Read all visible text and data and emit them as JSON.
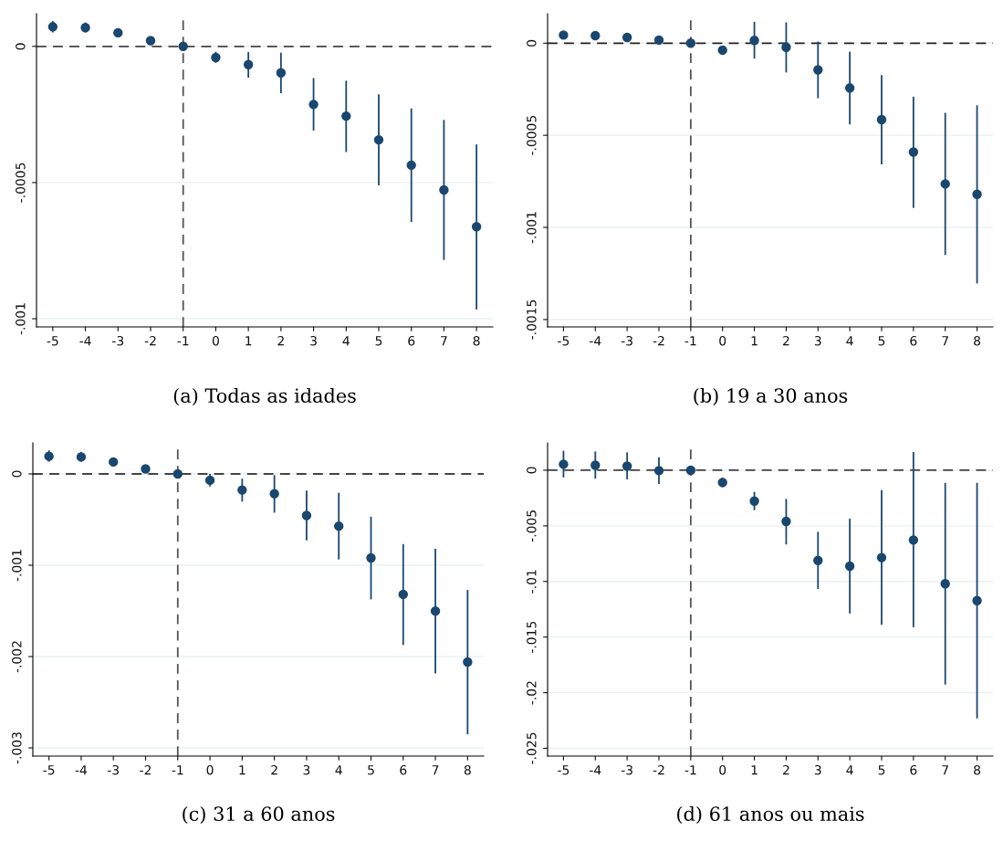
{
  "chart_data": [
    {
      "type": "scatter",
      "title": "(a) Todas as idades",
      "x": [
        -5,
        -4,
        -3,
        -2,
        -1,
        0,
        1,
        2,
        3,
        4,
        5,
        6,
        7,
        8
      ],
      "xlim": [
        -5.5,
        8.5
      ],
      "xticks": [
        -5,
        -4,
        -3,
        -2,
        -1,
        0,
        1,
        2,
        3,
        4,
        5,
        6,
        7,
        8
      ],
      "ylim": [
        -0.00103,
        0.00012
      ],
      "yticks": [
        0,
        {
          "value": -0.0005,
          "label": "-.0005"
        },
        {
          "value": -0.001,
          "label": "-.001"
        }
      ],
      "series": [
        {
          "color": "#1a476f",
          "values": [
            7.2e-05,
            6.9e-05,
            5e-05,
            2.1e-05,
            0,
            -4.1e-05,
            -6.7e-05,
            -9.7e-05,
            -0.000213,
            -0.000256,
            -0.000343,
            -0.000436,
            -0.000527,
            -0.000662
          ],
          "errors": [
            [
              5.1e-05,
              9.3e-05
            ],
            [
              5.1e-05,
              8.8e-05
            ],
            [
              3.5e-05,
              6.5e-05
            ],
            [
              9e-06,
              3.5e-05
            ],
            null,
            [
              -6e-05,
              -2e-05
            ],
            [
              -0.000115,
              -2.1e-05
            ],
            [
              -0.000172,
              -2.3e-05
            ],
            [
              -0.000309,
              -0.000116
            ],
            [
              -0.000388,
              -0.000126
            ],
            [
              -0.00051,
              -0.000176
            ],
            [
              -0.000645,
              -0.000228
            ],
            [
              -0.000784,
              -0.00027
            ],
            [
              -0.000966,
              -0.00036
            ]
          ]
        }
      ],
      "ref_lines": [
        {
          "axis": "y",
          "value": 0,
          "color": "#444444",
          "line_style": "dashed"
        },
        {
          "axis": "x",
          "value": -1,
          "color": "#555555",
          "line_style": "dashed"
        }
      ],
      "grid": "y",
      "marker": "circle"
    },
    {
      "type": "scatter",
      "title": "(b) 19 a 30 anos",
      "x": [
        -5,
        -4,
        -3,
        -2,
        -1,
        0,
        1,
        2,
        3,
        4,
        5,
        6,
        7,
        8
      ],
      "xlim": [
        -5.5,
        8.5
      ],
      "xticks": [
        -5,
        -4,
        -3,
        -2,
        -1,
        0,
        1,
        2,
        3,
        4,
        5,
        6,
        7,
        8
      ],
      "ylim": [
        -0.00154,
        0.00016
      ],
      "yticks": [
        0,
        {
          "value": -0.0005,
          "label": "-.0005"
        },
        {
          "value": -0.001,
          "label": "-.001"
        },
        {
          "value": -0.0015,
          "label": "-.0015"
        }
      ],
      "series": [
        {
          "color": "#1a476f",
          "values": [
            4.4e-05,
            4.1e-05,
            3.1e-05,
            1.7e-05,
            0,
            -3.8e-05,
            1.5e-05,
            -2.2e-05,
            -0.000145,
            -0.000243,
            -0.000415,
            -0.000591,
            -0.000764,
            -0.00082
          ],
          "errors": [
            null,
            null,
            null,
            null,
            null,
            null,
            [
              -8.4e-05,
              0.000116
            ],
            [
              -0.000159,
              0.000113
            ],
            [
              -0.000299,
              9e-06
            ],
            [
              -0.000441,
              -4.6e-05
            ],
            [
              -0.000658,
              -0.000173
            ],
            [
              -0.000894,
              -0.00029
            ],
            [
              -0.00115,
              -0.000378
            ],
            [
              -0.001304,
              -0.000337
            ]
          ]
        }
      ],
      "ref_lines": [
        {
          "axis": "y",
          "value": 0,
          "color": "#222222",
          "line_style": "dashed"
        },
        {
          "axis": "x",
          "value": -1,
          "color": "#555555",
          "line_style": "dashed"
        }
      ],
      "grid": "y",
      "marker": "circle"
    },
    {
      "type": "scatter",
      "title": "(c) 31 a 60 anos",
      "x": [
        -5,
        -4,
        -3,
        -2,
        -1,
        0,
        1,
        2,
        3,
        4,
        5,
        6,
        7,
        8
      ],
      "xlim": [
        -5.5,
        8.5
      ],
      "xticks": [
        -5,
        -4,
        -3,
        -2,
        -1,
        0,
        1,
        2,
        3,
        4,
        5,
        6,
        7,
        8
      ],
      "ylim": [
        -0.00309,
        0.00034
      ],
      "yticks": [
        0,
        {
          "value": -0.001,
          "label": "-.001"
        },
        {
          "value": -0.002,
          "label": "-.002"
        },
        {
          "value": -0.003,
          "label": "-.003"
        }
      ],
      "series": [
        {
          "color": "#1a476f",
          "values": [
            0.000193,
            0.000186,
            0.000131,
            5.5e-05,
            0,
            -6.9e-05,
            -0.000176,
            -0.000217,
            -0.000455,
            -0.000572,
            -0.00092,
            -0.001319,
            -0.001502,
            -0.00206
          ],
          "errors": [
            [
              0.000134,
              0.000258
            ],
            [
              0.000134,
              0.000241
            ],
            [
              9.3e-05,
              0.000169
            ],
            null,
            null,
            [
              -0.000138,
              0
            ],
            [
              -0.000303,
              -5.2e-05
            ],
            [
              -0.000424,
              -1.4e-05
            ],
            [
              -0.000727,
              -0.000183
            ],
            [
              -0.000937,
              -0.000207
            ],
            [
              -0.001374,
              -0.000468
            ],
            [
              -0.001874,
              -0.000768
            ],
            [
              -0.002184,
              -0.00082
            ],
            [
              -0.002852,
              -0.001271
            ]
          ]
        }
      ],
      "ref_lines": [
        {
          "axis": "y",
          "value": 0,
          "color": "#444444",
          "line_style": "dashed"
        },
        {
          "axis": "x",
          "value": -1,
          "color": "#555555",
          "line_style": "dashed"
        }
      ],
      "grid": "y",
      "marker": "circle"
    },
    {
      "type": "scatter",
      "title": "(d) 61 anos ou mais",
      "x": [
        -5,
        -4,
        -3,
        -2,
        -1,
        0,
        1,
        2,
        3,
        4,
        5,
        6,
        7,
        8
      ],
      "xlim": [
        -5.5,
        8.5
      ],
      "xticks": [
        -5,
        -4,
        -3,
        -2,
        -1,
        0,
        1,
        2,
        3,
        4,
        5,
        6,
        7,
        8
      ],
      "ylim": [
        -0.0257,
        0.00246
      ],
      "yticks": [
        0,
        {
          "value": -0.005,
          "label": "-.005"
        },
        {
          "value": -0.01,
          "label": "-.01"
        },
        {
          "value": -0.015,
          "label": "-.015"
        },
        {
          "value": -0.02,
          "label": "-.02"
        },
        {
          "value": -0.025,
          "label": "-.025"
        }
      ],
      "series": [
        {
          "color": "#1a476f",
          "values": [
            0.00054,
            0.00045,
            0.00037,
            -3e-05,
            0,
            -0.0011,
            -0.00277,
            -0.0046,
            -0.00811,
            -0.00862,
            -0.00785,
            -0.00627,
            -0.0102,
            -0.01172
          ],
          "errors": [
            [
              -0.00065,
              0.00175
            ],
            [
              -0.00076,
              0.00169
            ],
            [
              -0.00082,
              0.00161
            ],
            [
              -0.00124,
              0.00116
            ],
            null,
            [
              -0.00153,
              -0.00068
            ],
            [
              -0.00359,
              -0.00195
            ],
            [
              -0.00667,
              -0.00257
            ],
            [
              -0.01068,
              -0.00554
            ],
            [
              -0.01288,
              -0.00435
            ],
            [
              -0.0139,
              -0.00178
            ],
            [
              -0.01412,
              0.00164
            ],
            [
              -0.01927,
              -0.00113
            ],
            [
              -0.02232,
              -0.00113
            ]
          ]
        }
      ],
      "ref_lines": [
        {
          "axis": "y",
          "value": 0,
          "color": "#444444",
          "line_style": "dashed"
        },
        {
          "axis": "x",
          "value": -1,
          "color": "#555555",
          "line_style": "dashed"
        }
      ],
      "grid": "y",
      "marker": "circle"
    }
  ]
}
